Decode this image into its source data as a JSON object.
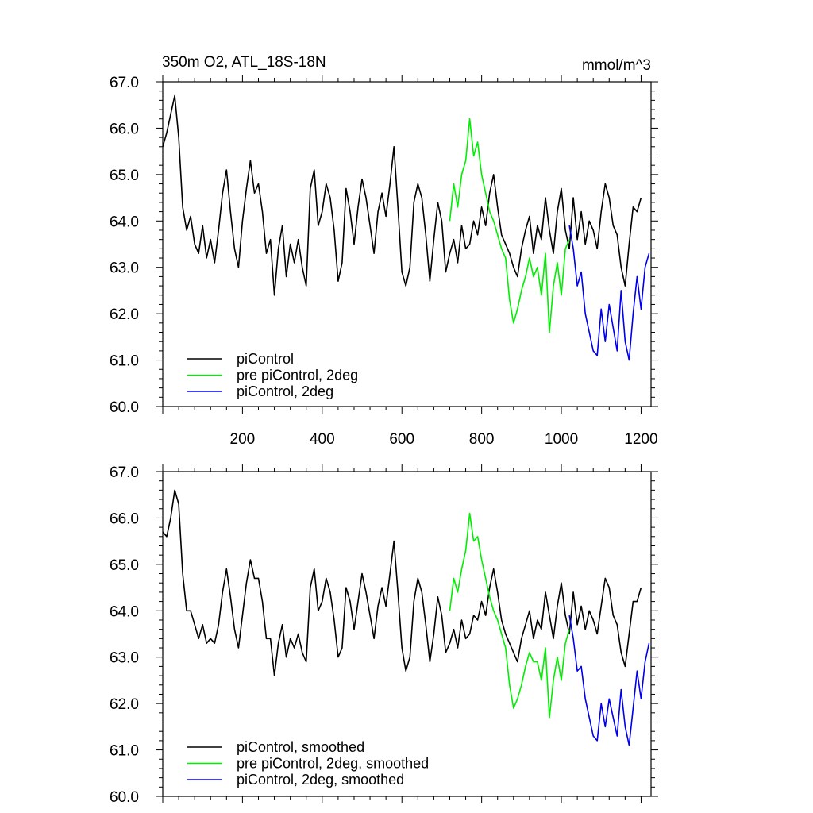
{
  "figure": {
    "title_left": "350m O2, ATL_18S-18N",
    "title_right": "mmol/m^3"
  },
  "chart_data": [
    {
      "type": "line",
      "xlim": [
        0,
        1225
      ],
      "ylim": [
        60,
        67
      ],
      "xticks": [
        200,
        400,
        600,
        800,
        1000,
        1200
      ],
      "xtick_labels": [
        "200",
        "400",
        "600",
        "800",
        "1000",
        "1200"
      ],
      "yticks": [
        60,
        61,
        62,
        63,
        64,
        65,
        66,
        67
      ],
      "ytick_labels": [
        "60.0",
        "61.0",
        "62.0",
        "63.0",
        "64.0",
        "65.0",
        "66.0",
        "67.0"
      ],
      "legend": "bottom-left",
      "grid": false,
      "series": [
        {
          "name": "piControl",
          "color": "#000000",
          "x": [
            0,
            10,
            20,
            30,
            40,
            50,
            60,
            70,
            80,
            90,
            100,
            110,
            120,
            130,
            140,
            150,
            160,
            170,
            180,
            190,
            200,
            210,
            220,
            230,
            240,
            250,
            260,
            270,
            280,
            290,
            300,
            310,
            320,
            330,
            340,
            350,
            360,
            370,
            380,
            390,
            400,
            410,
            420,
            430,
            440,
            450,
            460,
            470,
            480,
            490,
            500,
            510,
            520,
            530,
            540,
            550,
            560,
            570,
            580,
            590,
            600,
            610,
            620,
            630,
            640,
            650,
            660,
            670,
            680,
            690,
            700,
            710,
            720,
            730,
            740,
            750,
            760,
            770,
            780,
            790,
            800,
            810,
            820,
            830,
            840,
            850,
            860,
            870,
            880,
            890,
            900,
            910,
            920,
            930,
            940,
            950,
            960,
            970,
            980,
            990,
            1000,
            1010,
            1020,
            1030,
            1040,
            1050,
            1060,
            1070,
            1080,
            1090,
            1100,
            1110,
            1120,
            1130,
            1140,
            1150,
            1160,
            1170,
            1180,
            1190,
            1200
          ],
          "y": [
            65.6,
            65.9,
            66.3,
            66.7,
            65.8,
            64.3,
            63.8,
            64.1,
            63.5,
            63.3,
            63.9,
            63.2,
            63.6,
            63.1,
            63.8,
            64.6,
            65.1,
            64.2,
            63.4,
            63.0,
            64.0,
            64.7,
            65.3,
            64.6,
            64.8,
            64.2,
            63.3,
            63.6,
            62.4,
            63.4,
            63.9,
            62.8,
            63.5,
            63.1,
            63.6,
            63.0,
            62.6,
            64.7,
            65.1,
            63.9,
            64.2,
            64.8,
            64.5,
            63.8,
            62.7,
            63.1,
            64.7,
            64.2,
            63.5,
            64.3,
            64.9,
            64.5,
            63.9,
            63.3,
            64.2,
            64.6,
            64.1,
            64.8,
            65.6,
            64.3,
            62.9,
            62.6,
            63.0,
            64.4,
            64.8,
            64.5,
            63.7,
            62.7,
            63.6,
            64.4,
            64.0,
            62.9,
            63.3,
            63.6,
            63.1,
            63.9,
            63.4,
            63.5,
            64.0,
            63.7,
            64.3,
            63.9,
            64.6,
            65.0,
            64.3,
            63.7,
            63.5,
            63.3,
            63.0,
            62.8,
            63.4,
            63.8,
            64.1,
            63.3,
            63.9,
            63.6,
            64.5,
            63.8,
            63.3,
            64.2,
            64.7,
            63.8,
            63.4,
            64.5,
            63.6,
            64.2,
            63.5,
            64.0,
            63.8,
            63.4,
            64.2,
            64.8,
            64.5,
            63.9,
            63.7,
            63.0,
            62.6,
            63.5,
            64.3,
            64.2,
            64.5
          ]
        },
        {
          "name": "pre piControl, 2deg",
          "color": "#00ee00",
          "x": [
            720,
            730,
            740,
            750,
            760,
            770,
            780,
            790,
            800,
            810,
            820,
            830,
            840,
            850,
            860,
            870,
            880,
            890,
            900,
            910,
            920,
            930,
            940,
            950,
            960,
            970,
            980,
            990,
            1000,
            1010,
            1020
          ],
          "y": [
            64.0,
            64.8,
            64.3,
            65.0,
            65.3,
            66.2,
            65.4,
            65.7,
            65.0,
            64.6,
            64.2,
            64.0,
            63.7,
            63.4,
            63.2,
            62.3,
            61.8,
            62.1,
            62.5,
            62.8,
            63.2,
            62.8,
            63.0,
            62.4,
            63.3,
            61.6,
            62.6,
            63.1,
            62.4,
            63.4,
            63.6
          ]
        },
        {
          "name": "piControl, 2deg",
          "color": "#0000ee",
          "x": [
            1020,
            1030,
            1040,
            1050,
            1060,
            1070,
            1080,
            1090,
            1100,
            1110,
            1120,
            1130,
            1140,
            1150,
            1160,
            1170,
            1180,
            1190,
            1200,
            1210,
            1220
          ],
          "y": [
            63.9,
            63.4,
            62.6,
            62.9,
            62.0,
            61.6,
            61.2,
            61.1,
            62.1,
            61.4,
            62.2,
            61.7,
            61.2,
            62.5,
            61.4,
            61.0,
            62.0,
            62.8,
            62.1,
            63.0,
            63.3
          ]
        }
      ]
    },
    {
      "type": "line",
      "xlim": [
        0,
        1225
      ],
      "ylim": [
        60,
        67
      ],
      "yticks": [
        60,
        61,
        62,
        63,
        64,
        65,
        66,
        67
      ],
      "ytick_labels": [
        "60.0",
        "61.0",
        "62.0",
        "63.0",
        "64.0",
        "65.0",
        "66.0",
        "67.0"
      ],
      "legend": "bottom-left",
      "grid": false,
      "series": [
        {
          "name": "piControl, smoothed",
          "color": "#000000",
          "x": [
            0,
            10,
            20,
            30,
            40,
            50,
            60,
            70,
            80,
            90,
            100,
            110,
            120,
            130,
            140,
            150,
            160,
            170,
            180,
            190,
            200,
            210,
            220,
            230,
            240,
            250,
            260,
            270,
            280,
            290,
            300,
            310,
            320,
            330,
            340,
            350,
            360,
            370,
            380,
            390,
            400,
            410,
            420,
            430,
            440,
            450,
            460,
            470,
            480,
            490,
            500,
            510,
            520,
            530,
            540,
            550,
            560,
            570,
            580,
            590,
            600,
            610,
            620,
            630,
            640,
            650,
            660,
            670,
            680,
            690,
            700,
            710,
            720,
            730,
            740,
            750,
            760,
            770,
            780,
            790,
            800,
            810,
            820,
            830,
            840,
            850,
            860,
            870,
            880,
            890,
            900,
            910,
            920,
            930,
            940,
            950,
            960,
            970,
            980,
            990,
            1000,
            1010,
            1020,
            1030,
            1040,
            1050,
            1060,
            1070,
            1080,
            1090,
            1100,
            1110,
            1120,
            1130,
            1140,
            1150,
            1160,
            1170,
            1180,
            1190,
            1200
          ],
          "y": [
            65.7,
            65.6,
            66.0,
            66.6,
            66.3,
            64.8,
            64.0,
            64.0,
            63.7,
            63.4,
            63.7,
            63.3,
            63.4,
            63.3,
            63.7,
            64.4,
            64.9,
            64.3,
            63.6,
            63.2,
            63.9,
            64.6,
            65.1,
            64.7,
            64.7,
            64.2,
            63.4,
            63.4,
            62.6,
            63.3,
            63.7,
            63.0,
            63.4,
            63.2,
            63.5,
            63.1,
            62.9,
            64.5,
            64.9,
            64.0,
            64.2,
            64.7,
            64.4,
            63.8,
            63.0,
            63.2,
            64.5,
            64.2,
            63.6,
            64.2,
            64.8,
            64.4,
            63.9,
            63.4,
            64.1,
            64.5,
            64.1,
            64.8,
            65.5,
            64.4,
            63.2,
            62.7,
            63.0,
            64.2,
            64.7,
            64.4,
            63.7,
            62.9,
            63.5,
            64.3,
            63.9,
            63.1,
            63.3,
            63.6,
            63.2,
            63.8,
            63.4,
            63.5,
            63.9,
            63.8,
            64.2,
            63.9,
            64.5,
            64.9,
            64.4,
            63.8,
            63.5,
            63.3,
            63.1,
            62.9,
            63.4,
            63.7,
            64.0,
            63.4,
            63.8,
            63.6,
            64.4,
            63.9,
            63.4,
            64.1,
            64.6,
            63.9,
            63.5,
            64.4,
            63.7,
            64.1,
            63.6,
            64.0,
            63.8,
            63.5,
            64.1,
            64.7,
            64.5,
            63.9,
            63.7,
            63.1,
            62.8,
            63.5,
            64.2,
            64.2,
            64.5
          ]
        },
        {
          "name": "pre piControl, 2deg, smoothed",
          "color": "#00ee00",
          "x": [
            720,
            730,
            740,
            750,
            760,
            770,
            780,
            790,
            800,
            810,
            820,
            830,
            840,
            850,
            860,
            870,
            880,
            890,
            900,
            910,
            920,
            930,
            940,
            950,
            960,
            970,
            980,
            990,
            1000,
            1010,
            1020
          ],
          "y": [
            64.0,
            64.7,
            64.4,
            64.9,
            65.3,
            66.1,
            65.5,
            65.6,
            65.1,
            64.7,
            64.3,
            64.0,
            63.8,
            63.5,
            63.2,
            62.4,
            61.9,
            62.1,
            62.4,
            62.8,
            63.1,
            62.9,
            62.9,
            62.5,
            63.2,
            61.7,
            62.5,
            63.0,
            62.5,
            63.3,
            63.6
          ]
        },
        {
          "name": "piControl, 2deg, smoothed",
          "color": "#0000ee",
          "x": [
            1020,
            1030,
            1040,
            1050,
            1060,
            1070,
            1080,
            1090,
            1100,
            1110,
            1120,
            1130,
            1140,
            1150,
            1160,
            1170,
            1180,
            1190,
            1200,
            1210,
            1220
          ],
          "y": [
            63.9,
            63.4,
            62.7,
            62.8,
            62.1,
            61.7,
            61.3,
            61.2,
            62.0,
            61.5,
            62.1,
            61.7,
            61.3,
            62.3,
            61.5,
            61.1,
            61.9,
            62.7,
            62.1,
            62.9,
            63.3
          ]
        }
      ]
    }
  ]
}
